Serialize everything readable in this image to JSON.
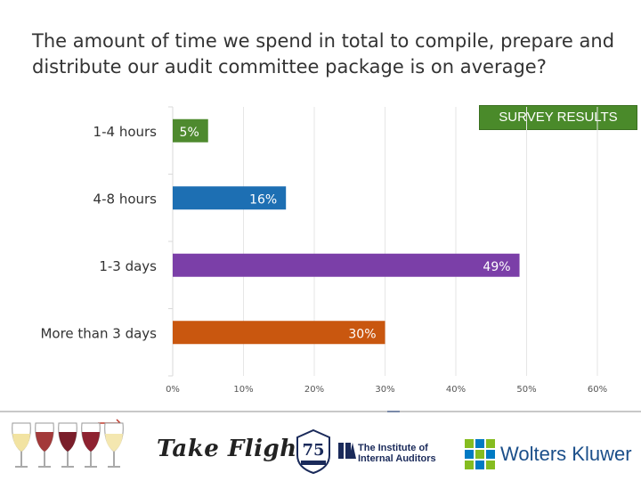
{
  "question": "The amount of time we spend in total to compile, prepare and distribute our audit committee package is on average?",
  "badge": "SURVEY RESULTS",
  "chart_data": {
    "type": "bar",
    "orientation": "horizontal",
    "title": "",
    "categories": [
      "1-4 hours",
      "4-8 hours",
      "1-3 days",
      "More than 3 days"
    ],
    "values": [
      5,
      16,
      49,
      30
    ],
    "value_labels": [
      "5%",
      "16%",
      "49%",
      "30%"
    ],
    "colors": [
      "#4e8a2e",
      "#1d6fb3",
      "#7b3fa8",
      "#c9570f"
    ],
    "xlim": [
      0,
      60
    ],
    "xticks": [
      "0%",
      "10%",
      "20%",
      "30%",
      "40%",
      "50%",
      "60%"
    ],
    "grid": true,
    "xlabel": "",
    "ylabel": ""
  },
  "footer": {
    "brand1": "Take Flight",
    "seal_text": "75",
    "org2_line1": "The Institute of",
    "org2_line2": "Internal Auditors",
    "org3": "Wolters Kluwer"
  }
}
